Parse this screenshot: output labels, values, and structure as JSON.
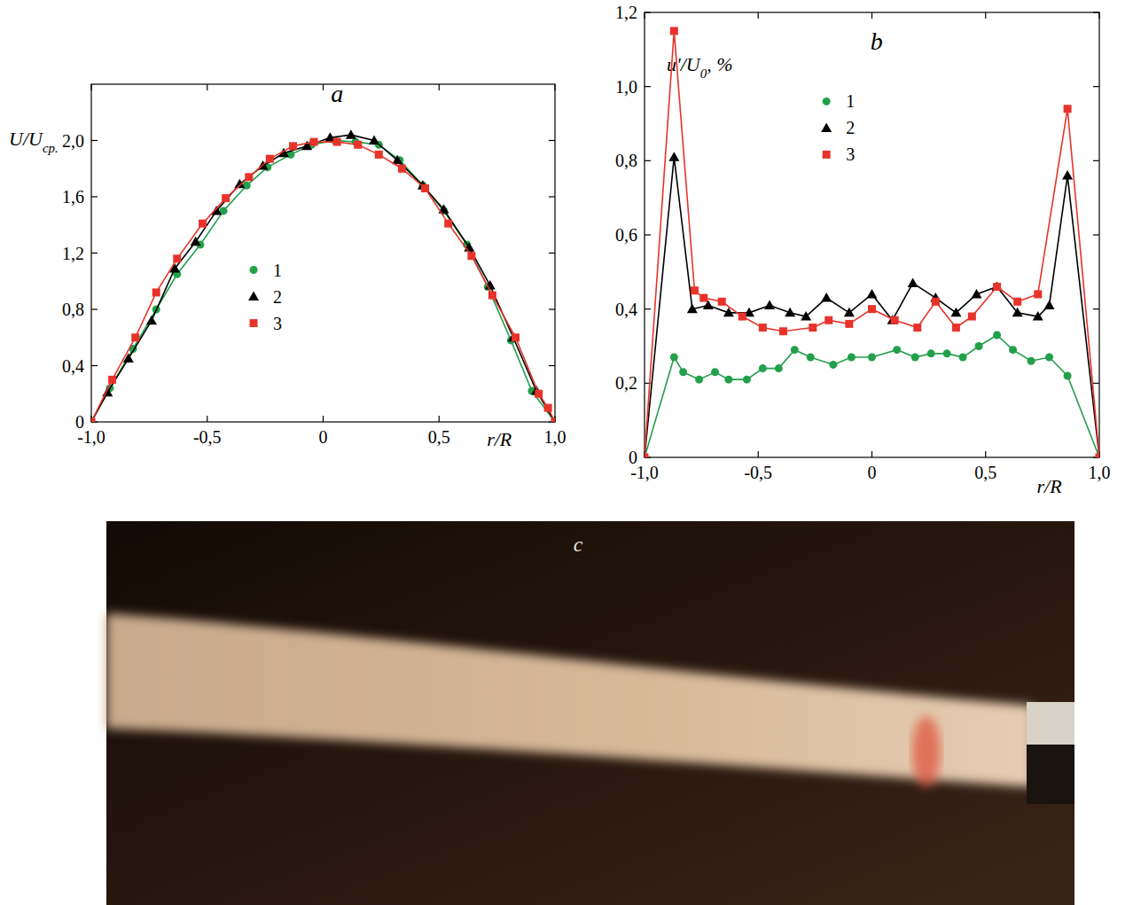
{
  "chart_data": [
    {
      "type": "line",
      "title": "a",
      "ylabel": [
        "U/U",
        "ср."
      ],
      "xlabel": "r/R",
      "xlim": [
        -1,
        1
      ],
      "ylim": [
        0,
        2.4
      ],
      "xticks": [
        {
          "value": -1,
          "label": "-1,0"
        },
        {
          "value": -0.5,
          "label": "-0,5"
        },
        0,
        {
          "value": 0.5,
          "label": "0,5"
        },
        {
          "value": 1,
          "label": "1,0"
        }
      ],
      "yticks": [
        0,
        {
          "value": 0.4,
          "label": "0,4"
        },
        {
          "value": 0.8,
          "label": "0,8"
        },
        {
          "value": 1.2,
          "label": "1,2"
        },
        {
          "value": 1.6,
          "label": "1,6"
        },
        {
          "value": 2.0,
          "label": "2,0"
        }
      ],
      "legend": "center",
      "series": [
        {
          "name": "1",
          "color": "#22a04b",
          "marker": "circle",
          "x": [
            -1.0,
            -0.92,
            -0.82,
            -0.72,
            -0.63,
            -0.53,
            -0.43,
            -0.33,
            -0.24,
            -0.14,
            -0.05,
            0.05,
            0.14,
            0.24,
            0.33,
            0.43,
            0.52,
            0.62,
            0.71,
            0.81,
            0.9,
            1.0
          ],
          "values": [
            0,
            0.24,
            0.52,
            0.8,
            1.05,
            1.26,
            1.5,
            1.68,
            1.81,
            1.9,
            1.97,
            2.0,
            1.99,
            1.97,
            1.86,
            1.68,
            1.5,
            1.26,
            0.96,
            0.58,
            0.22,
            0
          ]
        },
        {
          "name": "2",
          "color": "#000000",
          "marker": "triangle",
          "x": [
            -1.0,
            -0.93,
            -0.84,
            -0.74,
            -0.64,
            -0.55,
            -0.46,
            -0.36,
            -0.26,
            -0.17,
            -0.07,
            0.03,
            0.12,
            0.22,
            0.32,
            0.43,
            0.52,
            0.63,
            0.72,
            0.82,
            0.92,
            1.0
          ],
          "values": [
            0,
            0.21,
            0.45,
            0.72,
            1.09,
            1.28,
            1.5,
            1.69,
            1.82,
            1.91,
            1.96,
            2.02,
            2.04,
            2.0,
            1.86,
            1.68,
            1.51,
            1.24,
            0.97,
            0.6,
            0.22,
            0
          ]
        },
        {
          "name": "3",
          "color": "#e8332a",
          "marker": "square",
          "x": [
            -1.0,
            -0.91,
            -0.81,
            -0.72,
            -0.63,
            -0.52,
            -0.42,
            -0.32,
            -0.23,
            -0.13,
            -0.04,
            0.06,
            0.15,
            0.24,
            0.34,
            0.44,
            0.54,
            0.64,
            0.73,
            0.83,
            0.93,
            0.97,
            1.0
          ],
          "values": [
            0,
            0.3,
            0.6,
            0.92,
            1.16,
            1.41,
            1.59,
            1.74,
            1.87,
            1.96,
            1.99,
            1.99,
            1.97,
            1.9,
            1.8,
            1.66,
            1.41,
            1.18,
            0.9,
            0.6,
            0.2,
            0.1,
            0
          ]
        }
      ]
    },
    {
      "type": "line",
      "title": "b",
      "ylabel": [
        "u'/U",
        "0",
        ", %"
      ],
      "xlabel": "r/R",
      "xlim": [
        -1,
        1
      ],
      "ylim": [
        0,
        1.2
      ],
      "xticks": [
        {
          "value": -1,
          "label": "-1,0"
        },
        {
          "value": -0.5,
          "label": "-0,5"
        },
        0,
        {
          "value": 0.5,
          "label": "0,5"
        },
        {
          "value": 1,
          "label": "1,0"
        }
      ],
      "yticks": [
        0,
        {
          "value": 0.2,
          "label": "0,2"
        },
        {
          "value": 0.4,
          "label": "0,4"
        },
        {
          "value": 0.6,
          "label": "0,6"
        },
        {
          "value": 0.8,
          "label": "0,8"
        },
        {
          "value": 1.0,
          "label": "1,0"
        },
        {
          "value": 1.2,
          "label": "1,2"
        }
      ],
      "legend": "top",
      "series": [
        {
          "name": "1",
          "color": "#22a04b",
          "marker": "circle",
          "x": [
            -1.0,
            -0.87,
            -0.83,
            -0.76,
            -0.69,
            -0.63,
            -0.55,
            -0.48,
            -0.41,
            -0.34,
            -0.27,
            -0.17,
            -0.09,
            0.0,
            0.11,
            0.19,
            0.26,
            0.33,
            0.4,
            0.47,
            0.55,
            0.62,
            0.7,
            0.78,
            0.86,
            1.0
          ],
          "values": [
            0,
            0.27,
            0.23,
            0.21,
            0.23,
            0.21,
            0.21,
            0.24,
            0.24,
            0.29,
            0.27,
            0.25,
            0.27,
            0.27,
            0.29,
            0.27,
            0.28,
            0.28,
            0.27,
            0.3,
            0.33,
            0.29,
            0.26,
            0.27,
            0.22,
            0
          ]
        },
        {
          "name": "2",
          "color": "#000000",
          "marker": "triangle",
          "x": [
            -1.0,
            -0.87,
            -0.79,
            -0.72,
            -0.63,
            -0.54,
            -0.45,
            -0.36,
            -0.29,
            -0.2,
            -0.1,
            0.0,
            0.09,
            0.18,
            0.28,
            0.37,
            0.46,
            0.55,
            0.64,
            0.73,
            0.78,
            0.86,
            1.0
          ],
          "values": [
            0,
            0.81,
            0.4,
            0.41,
            0.39,
            0.39,
            0.41,
            0.39,
            0.38,
            0.43,
            0.39,
            0.44,
            0.37,
            0.47,
            0.43,
            0.39,
            0.44,
            0.46,
            0.39,
            0.38,
            0.41,
            0.76,
            0
          ]
        },
        {
          "name": "3",
          "color": "#e8332a",
          "marker": "square",
          "x": [
            -1.0,
            -0.87,
            -0.78,
            -0.74,
            -0.66,
            -0.57,
            -0.48,
            -0.39,
            -0.26,
            -0.19,
            -0.1,
            0.0,
            0.1,
            0.2,
            0.28,
            0.37,
            0.44,
            0.55,
            0.64,
            0.73,
            0.86,
            1.0
          ],
          "values": [
            0,
            1.15,
            0.45,
            0.43,
            0.42,
            0.38,
            0.35,
            0.34,
            0.35,
            0.37,
            0.36,
            0.4,
            0.37,
            0.35,
            0.42,
            0.35,
            0.38,
            0.46,
            0.42,
            0.44,
            0.94,
            0
          ]
        }
      ]
    }
  ],
  "photo": {
    "label": "c"
  }
}
